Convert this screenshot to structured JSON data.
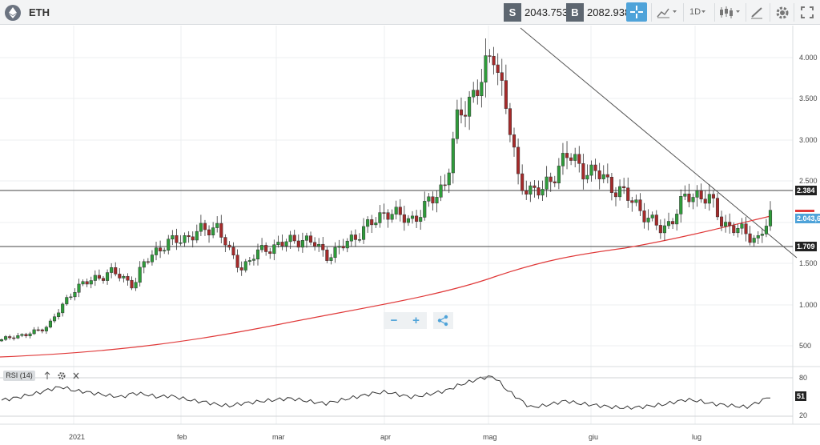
{
  "header": {
    "symbol": "ETH",
    "sell_label": "S",
    "sell_price": "2043.7535",
    "buy_label": "B",
    "buy_price": "2082.9386",
    "interval": "1D"
  },
  "colors": {
    "up_candle": "#2e9c3a",
    "down_candle": "#a52a2a",
    "moving_average": "#e03a3a",
    "accent": "#4fa3d9"
  },
  "chart": {
    "y_ticks": [
      "4.000",
      "3.500",
      "3.000",
      "2.500",
      "1.500",
      "1.000",
      "500"
    ],
    "x_ticks": [
      "2021",
      "feb",
      "mar",
      "apr",
      "mag",
      "giu",
      "lug"
    ],
    "horizontal_levels": [
      "2.384",
      "1.709"
    ],
    "current_price_label": "2.043,67",
    "zoom_out_label": "−",
    "zoom_in_label": "+"
  },
  "rsi": {
    "label": "RSI (14)",
    "y_ticks": [
      "80",
      "20"
    ],
    "current_value": "51"
  },
  "chart_data": {
    "type": "candlestick",
    "title": "ETH",
    "y_range": [
      0,
      4300
    ],
    "overbought": 80,
    "oversold": 20,
    "close": [
      560,
      620,
      620,
      680,
      760,
      960,
      1190,
      1250,
      1330,
      1390,
      1330,
      1240,
      1520,
      1680,
      1740,
      1800,
      1850,
      1900,
      1960,
      1600,
      1450,
      1580,
      1680,
      1720,
      1760,
      1800,
      1730,
      1600,
      1650,
      1780,
      1900,
      1990,
      2150,
      2060,
      2030,
      2120,
      2300,
      2500,
      3250,
      3520,
      3700,
      4100,
      3400,
      2500,
      2400,
      2350,
      2600,
      2800,
      2700,
      2600,
      2550,
      2420,
      2300,
      2200,
      2000,
      1900,
      2080,
      2300,
      2350,
      2250,
      2000,
      1920,
      1850,
      1800,
      2050
    ],
    "open_close_direction": "mixed",
    "ma_start": 300,
    "ma_end": 2080,
    "trendline_from": 4300,
    "trendline_to": 1620,
    "rsi": [
      45,
      48,
      52,
      56,
      62,
      66,
      60,
      58,
      55,
      52,
      50,
      56,
      54,
      50,
      52,
      48,
      44,
      42,
      38,
      36,
      40,
      42,
      44,
      46,
      48,
      45,
      42,
      40,
      44,
      48,
      52,
      56,
      58,
      54,
      50,
      52,
      56,
      60,
      68,
      74,
      80,
      82,
      62,
      48,
      34,
      36,
      40,
      44,
      40,
      38,
      36,
      34,
      33,
      34,
      36,
      38,
      42,
      46,
      44,
      40,
      38,
      36,
      34,
      42,
      51
    ]
  }
}
